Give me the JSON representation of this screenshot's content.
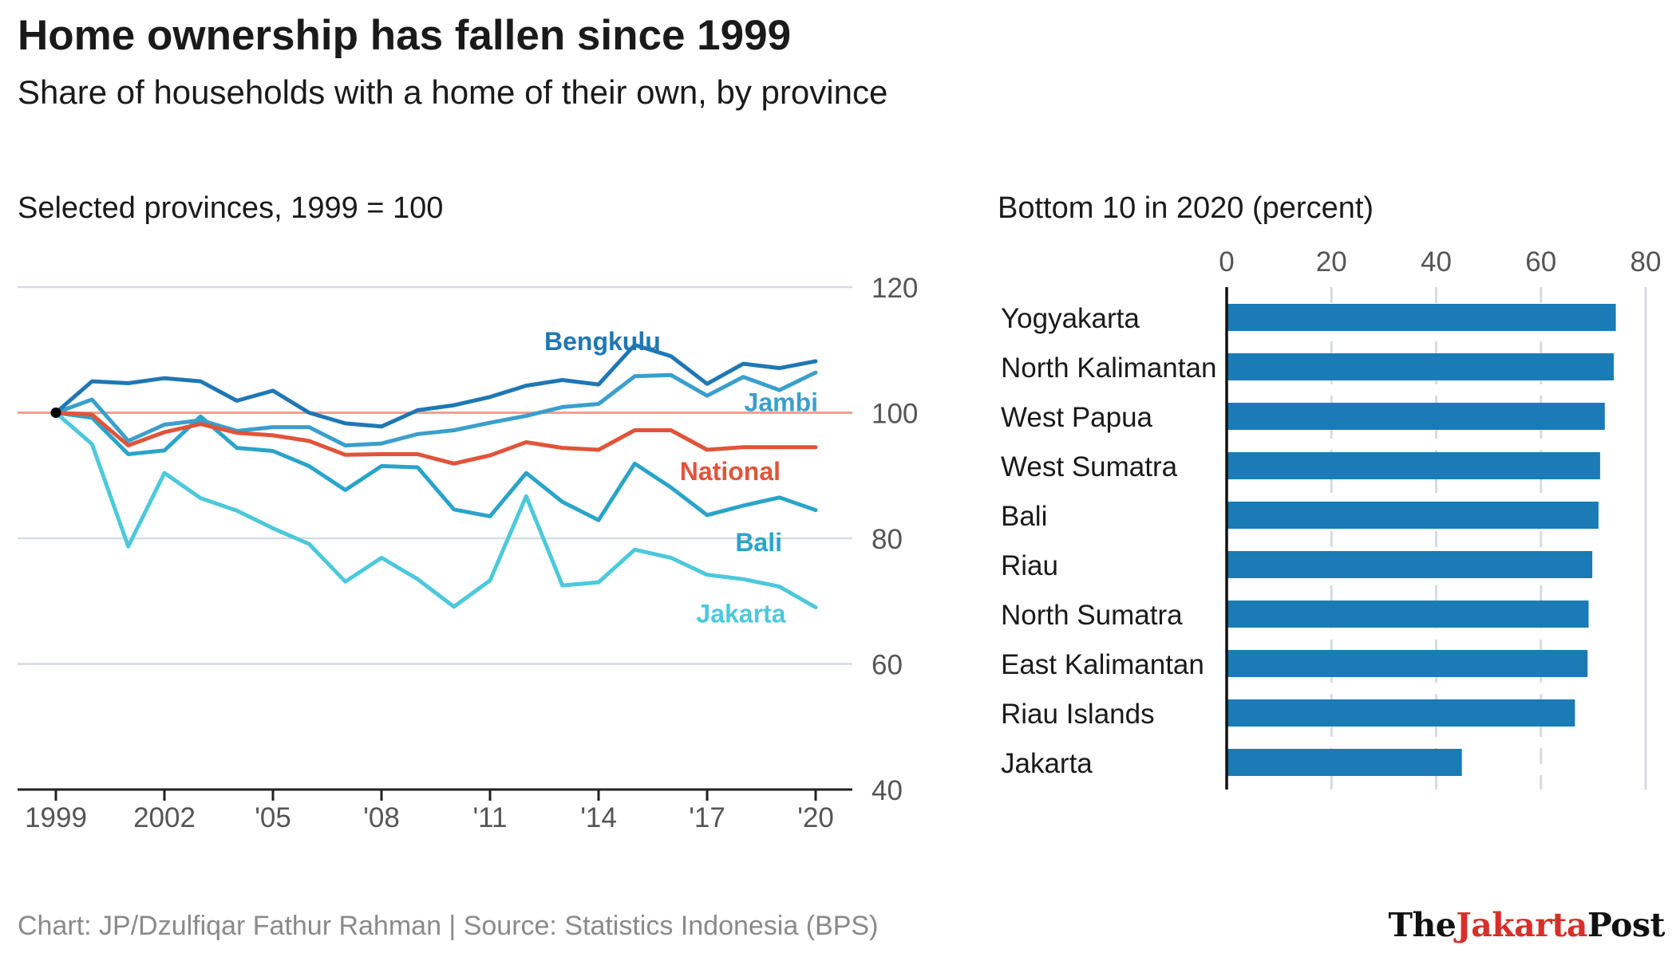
{
  "title": "Home ownership has fallen since 1999",
  "subtitle": "Share of households with a home of their own, by province",
  "left_panel_title": "Selected provinces, 1999 = 100",
  "right_panel_title": "Bottom 10 in 2020 (percent)",
  "footer": "Chart: JP/Dzulfiqar Fathur Rahman | Source: Statistics Indonesia (BPS)",
  "logo": {
    "part1": "The",
    "part2": "Jakarta",
    "part3": "Post"
  },
  "chart_data": [
    {
      "type": "line",
      "x": [
        1999,
        2000,
        2001,
        2002,
        2003,
        2004,
        2005,
        2006,
        2007,
        2008,
        2009,
        2010,
        2011,
        2012,
        2013,
        2014,
        2015,
        2016,
        2017,
        2018,
        2019,
        2020
      ],
      "x_ticks": [
        1999,
        2002,
        2005,
        2008,
        2011,
        2014,
        2017,
        2020
      ],
      "x_tick_labels": [
        "1999",
        "2002",
        "'05",
        "'08",
        "'11",
        "'14",
        "'17",
        "'20"
      ],
      "ylim": [
        40,
        120
      ],
      "y_ticks": [
        40,
        60,
        80,
        100,
        120
      ],
      "grid": "horizontal",
      "reference_line": 100,
      "colors": {
        "Bengkulu": "#1f77b4",
        "Jambi": "#3a9fcc",
        "National": "#e0543a",
        "Bali": "#2aa4c9",
        "Jakarta": "#4cc9db",
        "reference": "#f0a090",
        "grid": "#d5dbe0",
        "axis": "#222222",
        "tick": "#555555"
      },
      "series": [
        {
          "name": "Bengkulu",
          "values": [
            100,
            105,
            104.7,
            105.5,
            105,
            101.9,
            103.5,
            100,
            98.3,
            97.8,
            100.4,
            101.2,
            102.5,
            104.3,
            105.2,
            104.5,
            110.8,
            109,
            104.6,
            107.8,
            107.1,
            108.2
          ]
        },
        {
          "name": "Jambi",
          "values": [
            100,
            102.1,
            95.5,
            98.1,
            98.8,
            97.1,
            97.7,
            97.7,
            94.8,
            95.1,
            96.6,
            97.2,
            98.4,
            99.5,
            100.9,
            101.4,
            105.8,
            106,
            102.7,
            105.7,
            103.6,
            106.4
          ]
        },
        {
          "name": "National",
          "values": [
            100,
            99.7,
            94.8,
            96.9,
            98.2,
            96.8,
            96.4,
            95.5,
            93.3,
            93.4,
            93.4,
            91.9,
            93.2,
            95.3,
            94.4,
            94.1,
            97.2,
            97.2,
            94.1,
            94.5,
            94.5,
            94.5
          ]
        },
        {
          "name": "Bali",
          "values": [
            100,
            99.2,
            93.4,
            94,
            99.4,
            94.4,
            93.9,
            91.5,
            87.7,
            91.5,
            91.3,
            84.6,
            83.5,
            90.4,
            85.8,
            82.9,
            91.9,
            88.1,
            83.7,
            85.2,
            86.5,
            84.5
          ]
        },
        {
          "name": "Jakarta",
          "values": [
            100,
            95,
            78.7,
            90.4,
            86.4,
            84.4,
            81.6,
            79.1,
            73.1,
            76.9,
            73.5,
            69.1,
            73.3,
            86.7,
            72.5,
            73,
            78.2,
            76.9,
            74.2,
            73.5,
            72.3,
            69
          ]
        }
      ]
    },
    {
      "type": "bar",
      "orientation": "horizontal",
      "categories": [
        "Yogyakarta",
        "North Kalimantan",
        "West Papua",
        "West Sumatra",
        "Bali",
        "Riau",
        "North Sumatra",
        "East Kalimantan",
        "Riau Islands",
        "Jakarta"
      ],
      "values": [
        74.3,
        73.9,
        72.2,
        71.3,
        71,
        69.8,
        69.1,
        68.9,
        66.5,
        44.9
      ],
      "xlim": [
        0,
        80
      ],
      "x_ticks": [
        0,
        20,
        40,
        60,
        80
      ],
      "grid": "vertical",
      "colors": {
        "bar": "#1a7bb6",
        "grid": "#d5dbe0",
        "axis": "#111111"
      }
    }
  ]
}
